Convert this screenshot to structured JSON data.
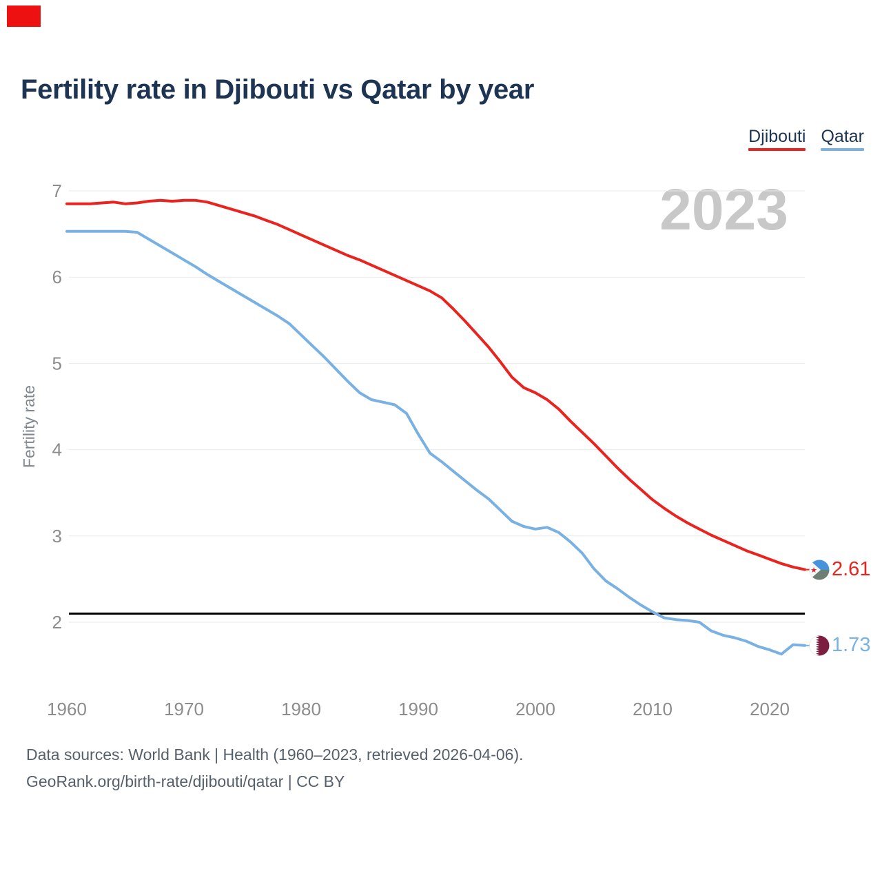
{
  "title": "Fertility rate in Djibouti vs Qatar by year",
  "watermark": "2023",
  "footer": {
    "line1": "Data sources: World Bank | Health (1960–2023, retrieved 2026-04-06).",
    "line2": "GeoRank.org/birth-rate/djibouti/qatar | CC BY"
  },
  "colors": {
    "djibouti_red": "#e9231e",
    "qatar_blue": "#78b1e2",
    "title_navy": "#1d3553",
    "tick_gray": "#8c8c8c",
    "gridline_gray": "#e9e9e9",
    "watermark_gray": "#c8c8c8",
    "footer_gray": "#55606b",
    "reference_black": "#000000",
    "corner_artifact_red": "#ee1111"
  },
  "chart_data": {
    "type": "line",
    "title": "Fertility rate in Djibouti vs Qatar by year",
    "xlabel": "",
    "ylabel": "Fertility rate",
    "grid": "horizontal",
    "legend_position": "top-right",
    "x_ticks": [
      1960,
      1970,
      1980,
      1990,
      2000,
      2010,
      2020
    ],
    "y_ticks": [
      2,
      3,
      4,
      5,
      6,
      7
    ],
    "xlim": [
      1960,
      2023
    ],
    "ylim": [
      1.5,
      7.05
    ],
    "reference_line": {
      "value": 2.1,
      "color": "#000000"
    },
    "years": [
      1960,
      1961,
      1962,
      1963,
      1964,
      1965,
      1966,
      1967,
      1968,
      1969,
      1970,
      1971,
      1972,
      1973,
      1974,
      1975,
      1976,
      1977,
      1978,
      1979,
      1980,
      1981,
      1982,
      1983,
      1984,
      1985,
      1986,
      1987,
      1988,
      1989,
      1990,
      1991,
      1992,
      1993,
      1994,
      1995,
      1996,
      1997,
      1998,
      1999,
      2000,
      2001,
      2002,
      2003,
      2004,
      2005,
      2006,
      2007,
      2008,
      2009,
      2010,
      2011,
      2012,
      2013,
      2014,
      2015,
      2016,
      2017,
      2018,
      2019,
      2020,
      2021,
      2022,
      2023
    ],
    "series": [
      {
        "name": "Djibouti",
        "color": "#e9231e",
        "end_label": "2.61",
        "flag": "djibouti-flag",
        "values": [
          6.85,
          6.85,
          6.85,
          6.86,
          6.87,
          6.85,
          6.86,
          6.88,
          6.89,
          6.88,
          6.89,
          6.89,
          6.87,
          6.83,
          6.79,
          6.75,
          6.71,
          6.66,
          6.61,
          6.55,
          6.49,
          6.43,
          6.37,
          6.31,
          6.25,
          6.2,
          6.14,
          6.08,
          6.02,
          5.96,
          5.9,
          5.84,
          5.76,
          5.63,
          5.49,
          5.34,
          5.19,
          5.02,
          4.84,
          4.72,
          4.66,
          4.58,
          4.47,
          4.33,
          4.2,
          4.07,
          3.93,
          3.79,
          3.66,
          3.54,
          3.42,
          3.32,
          3.23,
          3.15,
          3.08,
          3.01,
          2.95,
          2.89,
          2.83,
          2.78,
          2.73,
          2.68,
          2.64,
          2.61
        ]
      },
      {
        "name": "Qatar",
        "color": "#78b1e2",
        "end_label": "1.73",
        "flag": "qatar-flag",
        "values": [
          6.53,
          6.53,
          6.53,
          6.53,
          6.53,
          6.53,
          6.52,
          6.44,
          6.36,
          6.28,
          6.2,
          6.12,
          6.03,
          5.95,
          5.87,
          5.79,
          5.71,
          5.63,
          5.55,
          5.46,
          5.33,
          5.2,
          5.07,
          4.93,
          4.79,
          4.66,
          4.58,
          4.55,
          4.52,
          4.42,
          4.18,
          3.96,
          3.86,
          3.75,
          3.64,
          3.53,
          3.43,
          3.3,
          3.17,
          3.11,
          3.08,
          3.1,
          3.04,
          2.93,
          2.8,
          2.62,
          2.48,
          2.39,
          2.29,
          2.2,
          2.12,
          2.05,
          2.03,
          2.02,
          2.0,
          1.9,
          1.85,
          1.82,
          1.78,
          1.72,
          1.68,
          1.63,
          1.74,
          1.73
        ]
      }
    ]
  }
}
